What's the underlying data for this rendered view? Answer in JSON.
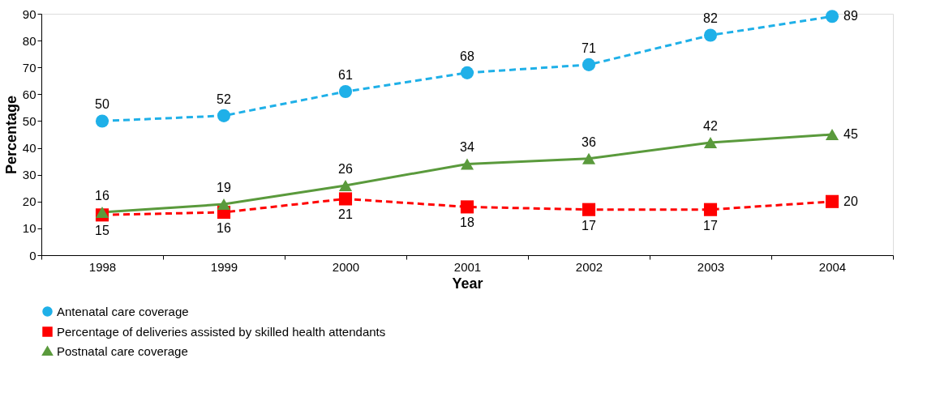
{
  "chart_data": {
    "type": "line",
    "xlabel": "Year",
    "ylabel": "Percentage",
    "categories": [
      "1998",
      "1999",
      "2000",
      "2001",
      "2002",
      "2003",
      "2004"
    ],
    "ylim": [
      0,
      90
    ],
    "yticks": [
      0,
      10,
      20,
      30,
      40,
      50,
      60,
      70,
      80,
      90
    ],
    "grid": false,
    "legend": "bottom",
    "data_labels": true,
    "series": [
      {
        "name": "Antenatal care coverage",
        "color": "#1fb0e8",
        "marker": "circle",
        "line_style": "dashed",
        "values": [
          50,
          52,
          61,
          68,
          71,
          82,
          89
        ]
      },
      {
        "name": "Percentage of deliveries assisted by skilled health attendants",
        "color": "#ff0000",
        "marker": "square",
        "line_style": "dashed",
        "values": [
          15,
          16,
          21,
          18,
          17,
          17,
          20
        ]
      },
      {
        "name": "Postnatal care coverage",
        "color": "#5a9a3c",
        "marker": "triangle",
        "line_style": "solid",
        "values": [
          16,
          19,
          26,
          34,
          36,
          42,
          45
        ]
      }
    ]
  }
}
